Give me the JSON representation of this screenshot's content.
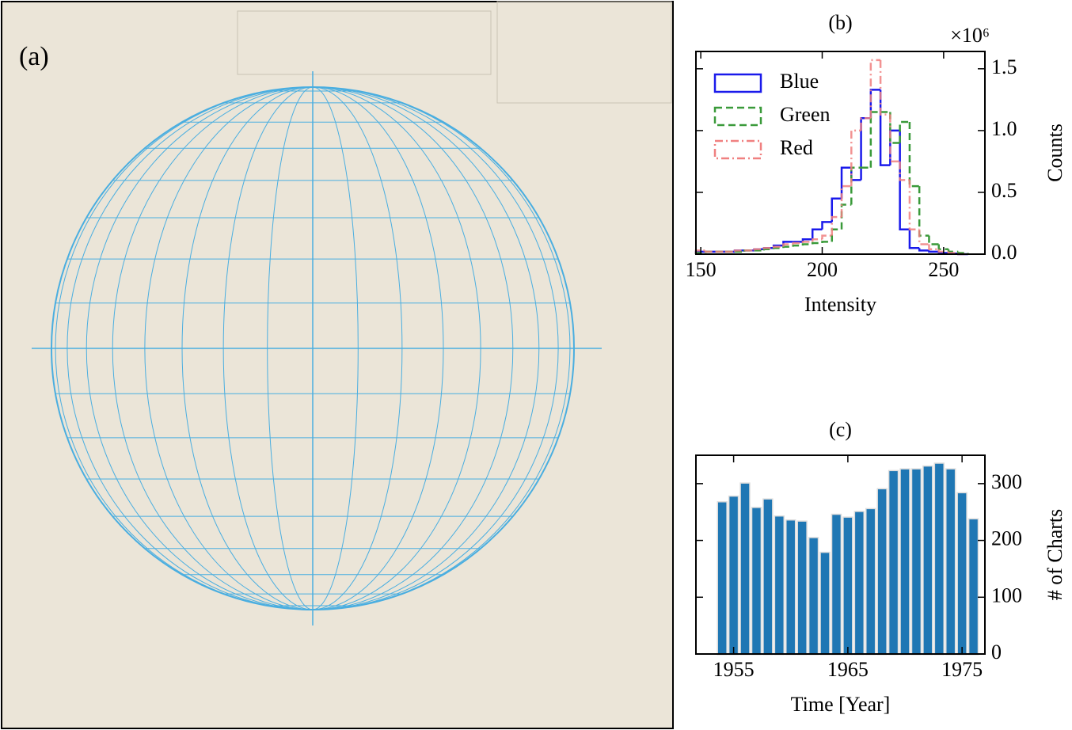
{
  "image_panel": {
    "label": "(a)"
  },
  "chart_data": [
    {
      "type": "histogram",
      "title": "(b)",
      "xlabel": "Intensity",
      "ylabel": "Counts",
      "y_offset_text": "×10⁶",
      "bins": [
        148,
        152,
        156,
        160,
        164,
        168,
        172,
        176,
        180,
        184,
        188,
        192,
        196,
        200,
        204,
        208,
        212,
        216,
        220,
        224,
        228,
        232,
        236,
        240,
        244,
        248,
        252,
        256,
        260
      ],
      "series": [
        {
          "name": "Blue",
          "color": "#1a1aeb",
          "dash": "solid",
          "values": [
            0.02,
            0.02,
            0.02,
            0.02,
            0.03,
            0.03,
            0.04,
            0.05,
            0.07,
            0.1,
            0.1,
            0.12,
            0.2,
            0.26,
            0.45,
            0.7,
            0.6,
            1.1,
            1.33,
            0.72,
            1.0,
            0.2,
            0.05,
            0.03,
            0.02,
            0.01,
            0.005,
            0
          ]
        },
        {
          "name": "Green",
          "color": "#3a9a3a",
          "dash": "dashed",
          "values": [
            0.01,
            0.02,
            0.02,
            0.02,
            0.02,
            0.03,
            0.03,
            0.04,
            0.05,
            0.06,
            0.07,
            0.08,
            0.09,
            0.1,
            0.2,
            0.4,
            0.7,
            0.7,
            1.15,
            1.15,
            0.9,
            1.07,
            0.55,
            0.15,
            0.08,
            0.04,
            0.02,
            0.01
          ]
        },
        {
          "name": "Red",
          "color": "#f08080",
          "dash": "dashdot",
          "values": [
            0.03,
            0.02,
            0.02,
            0.02,
            0.03,
            0.03,
            0.04,
            0.05,
            0.06,
            0.08,
            0.09,
            0.1,
            0.12,
            0.15,
            0.3,
            0.55,
            1.0,
            1.1,
            1.57,
            1.13,
            0.75,
            0.6,
            0.2,
            0.08,
            0.04,
            0.02,
            0.01,
            0
          ]
        }
      ],
      "xlim": [
        148,
        267
      ],
      "xticks": [
        150,
        200,
        250
      ],
      "ylim": [
        0,
        1.64
      ],
      "yticks": [
        {
          "value": 0,
          "label": "0.0"
        },
        0.5,
        {
          "value": 1,
          "label": "1.0"
        },
        1.5
      ],
      "y_axis_side": "right",
      "legend": "upper left"
    },
    {
      "type": "bar",
      "title": "(c)",
      "xlabel": "Time [Year]",
      "ylabel": "# of Charts",
      "x": [
        1954,
        1955,
        1956,
        1957,
        1958,
        1959,
        1960,
        1961,
        1962,
        1963,
        1964,
        1965,
        1966,
        1967,
        1968,
        1969,
        1970,
        1971,
        1972,
        1973,
        1974,
        1975,
        1976
      ],
      "values": [
        267,
        277,
        300,
        257,
        272,
        242,
        235,
        233,
        204,
        178,
        245,
        240,
        250,
        255,
        290,
        322,
        325,
        325,
        330,
        335,
        325,
        283,
        237
      ],
      "color": "#1f77b4",
      "xlim": [
        1951.7,
        1977
      ],
      "xticks": [
        1955,
        1965,
        1975
      ],
      "ylim": [
        0,
        350
      ],
      "yticks": [
        0,
        100,
        200,
        300
      ],
      "y_axis_side": "right"
    }
  ]
}
